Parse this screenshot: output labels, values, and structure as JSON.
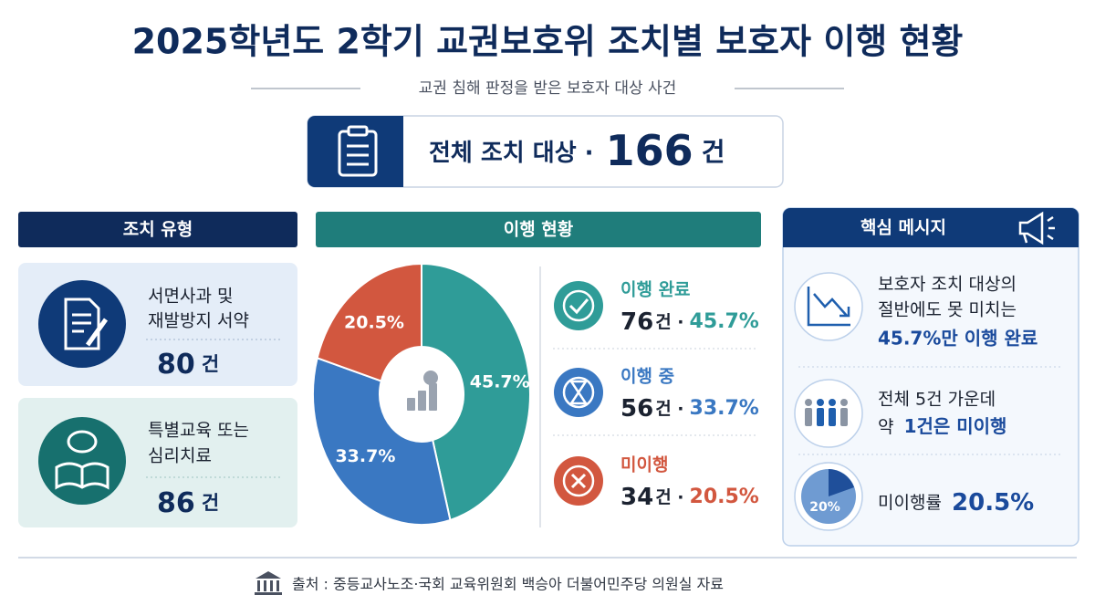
{
  "header": {
    "title": "2025학년도 2학기 교권보호위 조치별 보호자 이행 현황",
    "subtitle": "교권 침해 판정을 받은 보호자 대상 사건"
  },
  "total": {
    "label": "전체 조치 대상 ·",
    "value": 166,
    "unit": "건"
  },
  "measures": {
    "title": "조치 유형",
    "items": [
      {
        "lines": [
          "서면사과 및",
          "재발방지 서약"
        ],
        "count": 80,
        "unit": "건"
      },
      {
        "lines": [
          "특별교육 또는",
          "심리치료"
        ],
        "count": 86,
        "unit": "건"
      }
    ]
  },
  "chart_data": {
    "type": "pie",
    "title": "이행 현황",
    "categories": [
      "이행 완료",
      "이행 중",
      "미이행"
    ],
    "values": [
      45.7,
      33.7,
      20.5
    ],
    "value_labels": [
      "45.7%",
      "33.7%",
      "20.5%"
    ],
    "colors": [
      "#2f9c98",
      "#3a78c2",
      "#d2573f"
    ],
    "counts": [
      76,
      56,
      34
    ],
    "count_suffix": "건 ·"
  },
  "message": {
    "title": "핵심 메시지",
    "items": [
      {
        "lines": [
          "보호자 조치 대상의",
          "절반에도 못 미치는"
        ],
        "highlight": [
          "",
          "45.7%만 이행 완료"
        ]
      },
      {
        "lines": [
          "전체 5건 가운데"
        ],
        "highlight": [
          "약",
          "1건은 미이행"
        ]
      },
      {
        "lines": [],
        "highlight": [
          "미이행률",
          "20.5%"
        ],
        "icon_label": "20%"
      }
    ]
  },
  "source": "출처 : 중등교사노조·국회 교육위원회 백승아 더불어민주당 의원실 자료"
}
